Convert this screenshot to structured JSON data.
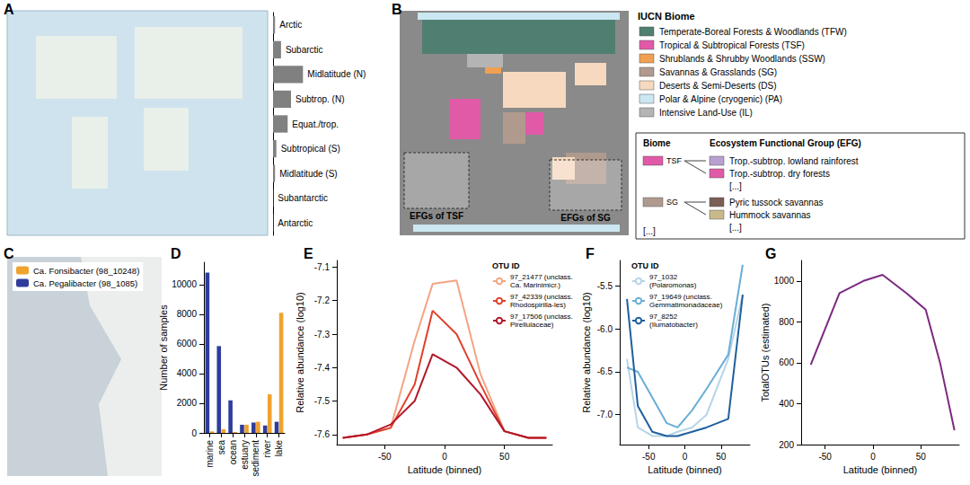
{
  "chart_data": [
    {
      "panel": "A",
      "type": "bar",
      "orientation": "horizontal",
      "categories": [
        "Arctic",
        "Subarctic",
        "Midlatitude (N)",
        "Subtrop. (N)",
        "Equat./trop.",
        "Subtropical (S)",
        "Midlatitude (S)",
        "Subantarctic",
        "Antarctic"
      ],
      "values": [
        3,
        12,
        45,
        27,
        22,
        5,
        3,
        0.5,
        0.5
      ],
      "color": "#808080",
      "grid": false
    },
    {
      "panel": "D",
      "type": "bar",
      "categories": [
        "marine",
        "sea",
        "ocean",
        "estuary",
        "sediment",
        "river",
        "lake"
      ],
      "series": [
        {
          "name": "Ca. Fonsibacter (98_10248)",
          "color": "#f0a22e",
          "values": [
            100,
            250,
            60,
            550,
            750,
            2600,
            8100
          ]
        },
        {
          "name": "Ca. Pegalibacter (98_1085)",
          "color": "#2e3c9c",
          "values": [
            10800,
            5850,
            2200,
            550,
            700,
            500,
            750
          ]
        }
      ],
      "ylabel": "Number of samples",
      "ylim": [
        0,
        11500
      ],
      "yticks": [
        0,
        2000,
        4000,
        6000,
        8000,
        10000
      ],
      "legend": "top-left",
      "grid": false
    },
    {
      "panel": "E",
      "type": "line",
      "xlabel": "Latitude (binned)",
      "ylabel": "Relative abundance (log10)",
      "x": [
        -85,
        -65,
        -45,
        -25,
        -10,
        10,
        30,
        50,
        70,
        85
      ],
      "xlim": [
        -90,
        90
      ],
      "xticks": [
        -50,
        0,
        50
      ],
      "ylim": [
        -7.63,
        -7.08
      ],
      "yticks": [
        -7.6,
        -7.5,
        -7.4,
        -7.3,
        -7.2,
        -7.1
      ],
      "legend": "top-right",
      "legend_title": "OTU ID",
      "grid": false,
      "series": [
        {
          "name": "97_21477 (unclass. Ca. Marinimicr.)",
          "color": "#f4a582",
          "values": [
            -7.61,
            -7.6,
            -7.58,
            -7.32,
            -7.15,
            -7.14,
            -7.42,
            -7.59,
            -7.61,
            -7.61
          ]
        },
        {
          "name": "97_42339 (unclass. Rhodospirilla-les)",
          "color": "#e0402c",
          "values": [
            -7.61,
            -7.6,
            -7.58,
            -7.45,
            -7.23,
            -7.3,
            -7.45,
            -7.59,
            -7.61,
            -7.61
          ]
        },
        {
          "name": "97_17506 (unclass. Pirellulaceae)",
          "color": "#b2182b",
          "values": [
            -7.61,
            -7.6,
            -7.57,
            -7.5,
            -7.36,
            -7.4,
            -7.48,
            -7.59,
            -7.61,
            -7.61
          ]
        }
      ]
    },
    {
      "panel": "F",
      "type": "line",
      "xlabel": "Latitude (binned)",
      "ylabel": "Relative abundance (log10)",
      "x": [
        -80,
        -65,
        -45,
        -25,
        -10,
        10,
        30,
        60,
        80
      ],
      "xlim": [
        -90,
        90
      ],
      "xticks": [
        -50,
        0,
        50
      ],
      "ylim": [
        -7.35,
        -5.2
      ],
      "yticks": [
        {
          "value": -7,
          "label": "-7.0"
        },
        -6.5,
        {
          "value": -6,
          "label": "-6.0"
        },
        -5.5
      ],
      "legend": "top-left",
      "legend_title": "OTU ID",
      "grid": false,
      "series": [
        {
          "name": "97_1032 (Polaromonas)",
          "color": "#b5d5e8",
          "values": [
            -6.35,
            -7.15,
            -7.25,
            -7.25,
            -7.2,
            -7.15,
            -7.0,
            -6.35,
            -5.6
          ]
        },
        {
          "name": "97_19649 (unclass. Gemmatimonadaceae)",
          "color": "#6aaed6",
          "values": [
            -6.45,
            -6.5,
            -6.8,
            -7.1,
            -7.15,
            -6.95,
            -6.7,
            -6.3,
            -5.25
          ]
        },
        {
          "name": "97_8252 (Ilumatobacter)",
          "color": "#1f5f9e",
          "values": [
            -5.65,
            -6.9,
            -7.2,
            -7.25,
            -7.25,
            -7.2,
            -7.15,
            -7.05,
            -5.6
          ]
        }
      ]
    },
    {
      "panel": "G",
      "type": "line",
      "xlabel": "Latitude (binned)",
      "ylabel": "TotalOTUs (estimated)",
      "x": [
        -65,
        -35,
        -10,
        10,
        35,
        55,
        70,
        85
      ],
      "xlim": [
        -75,
        90
      ],
      "xticks": [
        -50,
        0,
        50
      ],
      "ylim": [
        200,
        1100
      ],
      "yticks": [
        200,
        400,
        600,
        800,
        1000
      ],
      "values": [
        590,
        940,
        1000,
        1030,
        940,
        860,
        600,
        270
      ],
      "color": "#7b2a80",
      "grid": false
    }
  ],
  "maps": [
    {
      "panel": "B",
      "legend_title": "IUCN Biome",
      "biomes": [
        {
          "name": "Temperate-Boreal Forests & Woodlands (TFW)",
          "color": "#4f7f70"
        },
        {
          "name": "Tropical & Subtropical Forests (TSF)",
          "color": "#e05aa8"
        },
        {
          "name": "Shrublands & Shrubby Woodlands (SSW)",
          "color": "#f0a050"
        },
        {
          "name": "Savannas & Grasslands (SG)",
          "color": "#b09a8e"
        },
        {
          "name": "Deserts & Semi-Deserts (DS)",
          "color": "#f6d9bf"
        },
        {
          "name": "Polar & Alpine (cryogenic) (PA)",
          "color": "#cbe7f2"
        },
        {
          "name": "Intensive Land-Use (IL)",
          "color": "#b4b4b4"
        }
      ],
      "efg_box": {
        "headers": [
          "Biome",
          "Ecosystem Functional Group (EFG)"
        ],
        "groups": [
          {
            "biome": "TSF",
            "color": "#e05aa8",
            "efgs": [
              {
                "name": "Trop.-subtrop. lowland rainforest",
                "color": "#b8a0d0"
              },
              {
                "name": "Trop.-subtrop. dry forests",
                "color": "#e05aa8"
              }
            ],
            "more": "[...]"
          },
          {
            "biome": "SG",
            "color": "#b09a8e",
            "efgs": [
              {
                "name": "Pyric tussock savannas",
                "color": "#7b5e55"
              },
              {
                "name": "Hummock savannas",
                "color": "#c9b98a"
              }
            ],
            "more": "[...]"
          }
        ],
        "more": "[...]"
      },
      "insets": [
        "EFGs of TSF",
        "EFGs of SG"
      ]
    },
    {
      "panel": "C"
    }
  ]
}
